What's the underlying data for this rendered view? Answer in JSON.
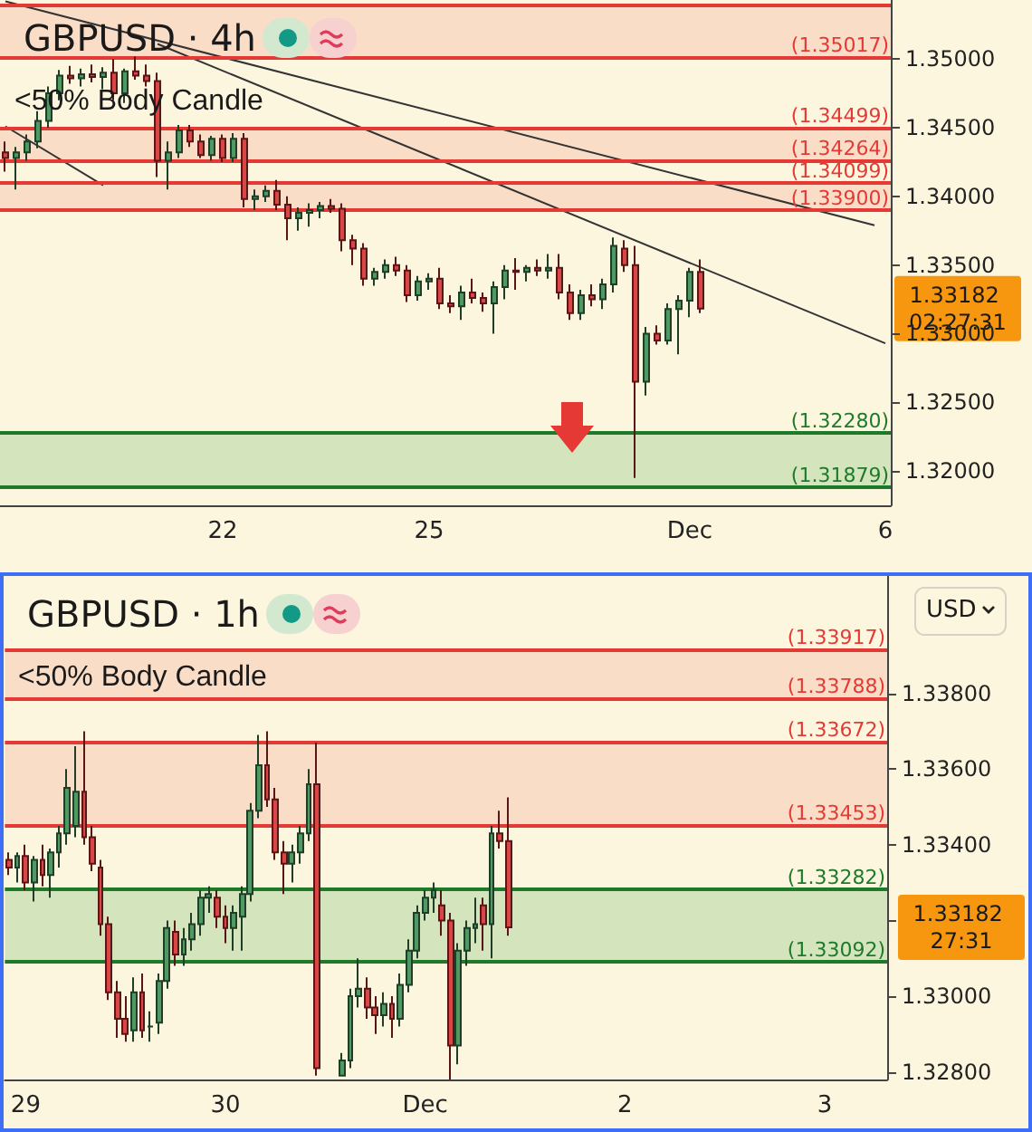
{
  "chart_data": [
    {
      "type": "candlestick",
      "title": "GBPUSD · 4h",
      "marker": "none",
      "grid": false,
      "categories": [
        null,
        null,
        null,
        null,
        null,
        null,
        null,
        null,
        null,
        null,
        null,
        null,
        null,
        null,
        null,
        null,
        null,
        null,
        null,
        null,
        "22",
        null,
        null,
        null,
        null,
        null,
        null,
        null,
        null,
        null,
        null,
        null,
        null,
        null,
        null,
        null,
        null,
        null,
        null,
        "25",
        null,
        null,
        null,
        null,
        null,
        null,
        null,
        null,
        null,
        null,
        null,
        null,
        null,
        null,
        null,
        null,
        null,
        null,
        null,
        null,
        null,
        null,
        null,
        "Dec",
        null,
        null,
        null,
        null,
        null,
        null,
        null,
        null,
        null,
        null,
        null,
        null,
        null,
        null,
        null,
        null,
        null,
        "6"
      ],
      "ohlc": [
        [
          1.3432,
          1.344,
          1.3418,
          1.3428
        ],
        [
          1.3428,
          1.3436,
          1.3405,
          1.3432
        ],
        [
          1.3432,
          1.3445,
          1.3426,
          1.344
        ],
        [
          1.344,
          1.3462,
          1.3435,
          1.3455
        ],
        [
          1.3455,
          1.348,
          1.345,
          1.3475
        ],
        [
          1.3475,
          1.3492,
          1.347,
          1.3488
        ],
        [
          1.3488,
          1.3495,
          1.3482,
          1.3486
        ],
        [
          1.3486,
          1.3493,
          1.348,
          1.3489
        ],
        [
          1.3489,
          1.3496,
          1.3483,
          1.3487
        ],
        [
          1.3487,
          1.3494,
          1.3478,
          1.349
        ],
        [
          1.349,
          1.35,
          1.347,
          1.3475
        ],
        [
          1.3475,
          1.3493,
          1.3468,
          1.3491
        ],
        [
          1.3491,
          1.3502,
          1.3485,
          1.3488
        ],
        [
          1.3488,
          1.3496,
          1.348,
          1.3484
        ],
        [
          1.3484,
          1.349,
          1.3414,
          1.3426
        ],
        [
          1.3426,
          1.344,
          1.3405,
          1.3432
        ],
        [
          1.3432,
          1.3452,
          1.3428,
          1.3448
        ],
        [
          1.3448,
          1.3452,
          1.3436,
          1.344
        ],
        [
          1.344,
          1.3445,
          1.3428,
          1.343
        ],
        [
          1.343,
          1.3444,
          1.3426,
          1.3442
        ],
        [
          1.3442,
          1.3445,
          1.3425,
          1.3428
        ],
        [
          1.3428,
          1.3446,
          1.3425,
          1.3442
        ],
        [
          1.3442,
          1.3446,
          1.3392,
          1.3398
        ],
        [
          1.3398,
          1.3405,
          1.339,
          1.34
        ],
        [
          1.34,
          1.3408,
          1.3396,
          1.3404
        ],
        [
          1.3404,
          1.3412,
          1.339,
          1.3394
        ],
        [
          1.3394,
          1.34,
          1.3368,
          1.3384
        ],
        [
          1.3384,
          1.3392,
          1.3375,
          1.3388
        ],
        [
          1.3388,
          1.3395,
          1.3378,
          1.339
        ],
        [
          1.339,
          1.3396,
          1.3384,
          1.3393
        ],
        [
          1.3393,
          1.3398,
          1.3388,
          1.3391
        ],
        [
          1.3391,
          1.3395,
          1.336,
          1.3368
        ],
        [
          1.3368,
          1.3372,
          1.335,
          1.3362
        ],
        [
          1.3362,
          1.3366,
          1.3335,
          1.334
        ],
        [
          1.334,
          1.3348,
          1.3335,
          1.3345
        ],
        [
          1.3345,
          1.3354,
          1.334,
          1.335
        ],
        [
          1.335,
          1.3356,
          1.3342,
          1.3346
        ],
        [
          1.3346,
          1.335,
          1.3323,
          1.3328
        ],
        [
          1.3328,
          1.3342,
          1.3324,
          1.3338
        ],
        [
          1.3338,
          1.3344,
          1.3332,
          1.334
        ],
        [
          1.334,
          1.3348,
          1.3318,
          1.3322
        ],
        [
          1.3322,
          1.3328,
          1.3315,
          1.332
        ],
        [
          1.332,
          1.3335,
          1.331,
          1.333
        ],
        [
          1.333,
          1.334,
          1.3322,
          1.3326
        ],
        [
          1.3326,
          1.333,
          1.3316,
          1.3322
        ],
        [
          1.3322,
          1.3338,
          1.33,
          1.3334
        ],
        [
          1.3334,
          1.335,
          1.3325,
          1.3346
        ],
        [
          1.3346,
          1.3355,
          1.3332,
          1.3345
        ],
        [
          1.3345,
          1.335,
          1.3338,
          1.3348
        ],
        [
          1.3348,
          1.3354,
          1.3342,
          1.3346
        ],
        [
          1.3346,
          1.3358,
          1.334,
          1.3348
        ],
        [
          1.3348,
          1.3358,
          1.3325,
          1.333
        ],
        [
          1.333,
          1.3336,
          1.331,
          1.3315
        ],
        [
          1.3315,
          1.3332,
          1.331,
          1.3328
        ],
        [
          1.3328,
          1.3336,
          1.332,
          1.3325
        ],
        [
          1.3325,
          1.334,
          1.3318,
          1.3336
        ],
        [
          1.3336,
          1.337,
          1.333,
          1.3364
        ],
        [
          1.3362,
          1.3368,
          1.3345,
          1.335
        ],
        [
          1.335,
          1.3364,
          1.3195,
          1.3265
        ],
        [
          1.3265,
          1.3305,
          1.3255,
          1.33
        ],
        [
          1.33,
          1.3306,
          1.3292,
          1.3295
        ],
        [
          1.3295,
          1.3322,
          1.3292,
          1.3318
        ],
        [
          1.3318,
          1.3328,
          1.3285,
          1.3324
        ],
        [
          1.3324,
          1.3348,
          1.3312,
          1.3345
        ],
        [
          1.3345,
          1.3354,
          1.3315,
          1.33182
        ],
        null,
        null,
        null,
        null,
        null,
        null,
        null,
        null,
        null,
        null,
        null,
        null,
        null,
        null,
        null,
        null,
        null
      ],
      "series": [
        {
          "type": "line",
          "color": "#333333",
          "values": [
            1.3542,
            null,
            null,
            null,
            null,
            null,
            null,
            null,
            null,
            null,
            null,
            null,
            null,
            null,
            null,
            null,
            null,
            null,
            null,
            null,
            null,
            null,
            null,
            null,
            null,
            null,
            null,
            null,
            null,
            null,
            null,
            null,
            null,
            null,
            null,
            null,
            null,
            null,
            null,
            null,
            null,
            null,
            null,
            null,
            null,
            null,
            null,
            null,
            null,
            null,
            null,
            null,
            null,
            null,
            null,
            null,
            null,
            null,
            null,
            null,
            null,
            null,
            null,
            null,
            null,
            null,
            null,
            null,
            null,
            null,
            null,
            null,
            null,
            null,
            null,
            null,
            null,
            null,
            null,
            null,
            1.3379,
            null
          ]
        },
        {
          "type": "line",
          "color": "#333333",
          "values": [
            null,
            null,
            null,
            null,
            null,
            null,
            null,
            null,
            null,
            null,
            null,
            null,
            null,
            null,
            1.3511,
            null,
            null,
            null,
            null,
            null,
            null,
            null,
            null,
            null,
            null,
            null,
            null,
            null,
            null,
            null,
            null,
            null,
            null,
            null,
            null,
            null,
            null,
            null,
            null,
            null,
            null,
            null,
            null,
            null,
            null,
            null,
            null,
            null,
            null,
            null,
            null,
            null,
            null,
            null,
            null,
            null,
            null,
            null,
            null,
            null,
            null,
            null,
            null,
            null,
            null,
            null,
            null,
            null,
            null,
            null,
            null,
            null,
            null,
            null,
            null,
            null,
            null,
            null,
            null,
            null,
            null,
            1.3293
          ]
        },
        {
          "type": "line",
          "color": "#333333",
          "values": [
            1.3451,
            null,
            null,
            null,
            null,
            null,
            null,
            null,
            null,
            1.3408,
            null,
            null,
            null,
            null,
            null,
            null,
            null,
            null,
            null,
            null,
            null,
            null,
            null,
            null,
            null,
            null,
            null,
            null,
            null,
            null,
            null,
            null,
            null,
            null,
            null,
            null,
            null,
            null,
            null,
            null,
            null,
            null,
            null,
            null,
            null,
            null,
            null,
            null,
            null,
            null,
            null,
            null,
            null,
            null,
            null,
            null,
            null,
            null,
            null,
            null,
            null,
            null,
            null,
            null,
            null,
            null,
            null,
            null,
            null,
            null,
            null,
            null,
            null,
            null,
            null,
            null,
            null,
            null,
            null,
            null,
            null,
            null
          ]
        }
      ],
      "ylim": [
        1.3175,
        1.3543
      ],
      "yticks": [
        {
          "value": 1.32,
          "label": "1.32000"
        },
        {
          "value": 1.325,
          "label": "1.32500"
        },
        {
          "value": 1.33,
          "label": "1.33000"
        },
        {
          "value": 1.335,
          "label": "1.33500"
        },
        {
          "value": 1.34,
          "label": "1.34000"
        },
        {
          "value": 1.345,
          "label": "1.34500"
        },
        {
          "value": 1.35,
          "label": "1.35000"
        }
      ],
      "ref_lines": [
        {
          "axis": "y",
          "value": 1.3539,
          "label": null,
          "color": "#e53935"
        },
        {
          "axis": "y",
          "value": 1.35017,
          "label": "(1.35017)",
          "color": "#e53935"
        },
        {
          "axis": "y",
          "value": 1.34499,
          "label": "(1.34499)",
          "color": "#e53935"
        },
        {
          "axis": "y",
          "value": 1.34264,
          "label": "(1.34264)",
          "color": "#e53935"
        },
        {
          "axis": "y",
          "value": 1.34099,
          "label": "(1.34099)",
          "color": "#e53935"
        },
        {
          "axis": "y",
          "value": 1.339,
          "label": "(1.33900)",
          "color": "#e53935"
        },
        {
          "axis": "y",
          "value": 1.3228,
          "label": "(1.32280)",
          "color": "#1e7a2a"
        },
        {
          "axis": "y",
          "value": 1.31879,
          "label": "(1.31879)",
          "color": "#1e7a2a"
        }
      ],
      "bands": [
        {
          "axis": "y",
          "from": 1.35017,
          "to": 1.3539,
          "color": "#f7cdb8"
        },
        {
          "axis": "y",
          "from": 1.34264,
          "to": 1.34499,
          "color": "#f7cdb8"
        },
        {
          "axis": "y",
          "from": 1.339,
          "to": 1.34099,
          "color": "#f7cdb8"
        },
        {
          "axis": "y",
          "from": 1.31879,
          "to": 1.3228,
          "color": "#b9d9a6"
        }
      ],
      "annotations": [
        "<50% Body Candle",
        "1.33182 02:27:31"
      ]
    },
    {
      "type": "candlestick",
      "title": "GBPUSD · 1h",
      "grid": false,
      "categories": [
        null,
        null,
        "29",
        null,
        null,
        null,
        null,
        null,
        null,
        null,
        null,
        null,
        null,
        null,
        null,
        null,
        null,
        null,
        null,
        null,
        null,
        null,
        null,
        null,
        null,
        null,
        "30",
        null,
        null,
        null,
        null,
        null,
        null,
        null,
        null,
        null,
        null,
        null,
        null,
        null,
        null,
        null,
        null,
        null,
        null,
        null,
        null,
        null,
        null,
        null,
        "Dec",
        null,
        null,
        null,
        null,
        null,
        null,
        null,
        null,
        null,
        null,
        null,
        null,
        null,
        null,
        null,
        null,
        null,
        null,
        null,
        null,
        null,
        null,
        null,
        "2",
        null,
        null,
        null,
        null,
        null,
        null,
        null,
        null,
        null,
        null,
        null,
        null,
        null,
        null,
        null,
        null,
        null,
        null,
        null,
        null,
        null,
        null,
        null,
        "3",
        null,
        null,
        null,
        null,
        null,
        null,
        null
      ],
      "ohlc": [
        [
          1.3336,
          1.3338,
          1.3332,
          1.3334
        ],
        [
          1.3334,
          1.3338,
          1.333,
          1.3337
        ],
        [
          1.3337,
          1.334,
          1.3328,
          1.333
        ],
        [
          1.333,
          1.3337,
          1.3325,
          1.3336
        ],
        [
          1.3336,
          1.334,
          1.3329,
          1.3332
        ],
        [
          1.3332,
          1.3339,
          1.3326,
          1.3338
        ],
        [
          1.3338,
          1.3345,
          1.3334,
          1.3343
        ],
        [
          1.3343,
          1.336,
          1.334,
          1.3355
        ],
        [
          1.3345,
          1.3366,
          1.3342,
          1.3354
        ],
        [
          1.3354,
          1.337,
          1.334,
          1.3342
        ],
        [
          1.3342,
          1.3345,
          1.3333,
          1.3335
        ],
        [
          1.3334,
          1.3336,
          1.3316,
          1.3319
        ],
        [
          1.3319,
          1.3321,
          1.3299,
          1.3301
        ],
        [
          1.3301,
          1.3304,
          1.3289,
          1.3294
        ],
        [
          1.3294,
          1.33,
          1.3288,
          1.329
        ],
        [
          1.3291,
          1.3305,
          1.3288,
          1.3301
        ],
        [
          1.3301,
          1.3306,
          1.3289,
          1.3291
        ],
        [
          1.3292,
          1.3296,
          1.3288,
          1.3292
        ],
        [
          1.3293,
          1.3306,
          1.329,
          1.3304
        ],
        [
          1.3304,
          1.332,
          1.3302,
          1.3318
        ],
        [
          1.3317,
          1.332,
          1.3308,
          1.3311
        ],
        [
          1.3311,
          1.3318,
          1.3308,
          1.3315
        ],
        [
          1.3315,
          1.3322,
          1.3312,
          1.3319
        ],
        [
          1.3319,
          1.3328,
          1.3316,
          1.3326
        ],
        [
          1.3326,
          1.3329,
          1.3322,
          1.3327
        ],
        [
          1.3326,
          1.3328,
          1.3318,
          1.3321
        ],
        [
          1.3321,
          1.3324,
          1.3314,
          1.3318
        ],
        [
          1.3318,
          1.3324,
          1.3312,
          1.3322
        ],
        [
          1.3321,
          1.3329,
          1.3312,
          1.3327
        ],
        [
          1.3327,
          1.3351,
          1.3325,
          1.3349
        ],
        [
          1.3349,
          1.3369,
          1.3347,
          1.3361
        ],
        [
          1.3361,
          1.337,
          1.335,
          1.3352
        ],
        [
          1.3352,
          1.3355,
          1.3336,
          1.3338
        ],
        [
          1.3338,
          1.3341,
          1.3327,
          1.3335
        ],
        [
          1.3335,
          1.334,
          1.333,
          1.3338
        ],
        [
          1.3338,
          1.3345,
          1.3335,
          1.3343
        ],
        [
          1.3343,
          1.336,
          1.3341,
          1.3356
        ],
        [
          1.3356,
          1.3367,
          1.3279,
          1.3281
        ],
        null,
        null,
        [
          1.3279,
          1.3285,
          1.3279,
          1.3283
        ],
        [
          1.3283,
          1.3302,
          1.3281,
          1.33
        ],
        [
          1.33,
          1.331,
          1.3297,
          1.3302
        ],
        [
          1.3302,
          1.3305,
          1.3294,
          1.3297
        ],
        [
          1.3297,
          1.33,
          1.329,
          1.3295
        ],
        [
          1.3295,
          1.3301,
          1.3292,
          1.3298
        ],
        [
          1.3298,
          1.33,
          1.3289,
          1.3294
        ],
        [
          1.3294,
          1.3306,
          1.3292,
          1.3303
        ],
        [
          1.3303,
          1.3315,
          1.3301,
          1.3312
        ],
        [
          1.3312,
          1.3324,
          1.331,
          1.3322
        ],
        [
          1.3322,
          1.3328,
          1.332,
          1.3326
        ],
        [
          1.3326,
          1.333,
          1.3322,
          1.3328
        ],
        [
          1.3324,
          1.3328,
          1.3316,
          1.332
        ],
        [
          1.332,
          1.3322,
          1.3278,
          1.3287
        ],
        [
          1.3287,
          1.3314,
          1.3282,
          1.3312
        ],
        [
          1.3312,
          1.332,
          1.3308,
          1.3318
        ],
        [
          1.3318,
          1.3326,
          1.3314,
          1.3319
        ],
        [
          1.3324,
          1.3326,
          1.3312,
          1.3319
        ],
        [
          1.3319,
          1.3345,
          1.331,
          1.3343
        ],
        [
          1.3343,
          1.3349,
          1.3339,
          1.3341
        ],
        [
          1.3341,
          1.33525,
          1.3316,
          1.33182
        ],
        null,
        null,
        null,
        null,
        null,
        null,
        null,
        null,
        null,
        null,
        null,
        null,
        null,
        null,
        null,
        null,
        null,
        null,
        null,
        null,
        null,
        null,
        null,
        null,
        null,
        null,
        null,
        null,
        null,
        null,
        null,
        null,
        null,
        null,
        null,
        null,
        null,
        null,
        null,
        null,
        null,
        null,
        null,
        null,
        null
      ],
      "ylim": [
        1.3278,
        1.3411
      ],
      "yticks": [
        {
          "value": 1.328,
          "label": "1.32800"
        },
        {
          "value": 1.33,
          "label": "1.33000"
        },
        {
          "value": 1.332,
          "label": null
        },
        {
          "value": 1.334,
          "label": "1.33400"
        },
        {
          "value": 1.336,
          "label": "1.33600"
        },
        {
          "value": 1.338,
          "label": "1.33800"
        }
      ],
      "ref_lines": [
        {
          "axis": "y",
          "value": 1.33917,
          "label": "(1.33917)",
          "color": "#e53935"
        },
        {
          "axis": "y",
          "value": 1.33788,
          "label": "(1.33788)",
          "color": "#e53935"
        },
        {
          "axis": "y",
          "value": 1.33672,
          "label": "(1.33672)",
          "color": "#e53935"
        },
        {
          "axis": "y",
          "value": 1.33453,
          "label": "(1.33453)",
          "color": "#e53935"
        },
        {
          "axis": "y",
          "value": 1.33282,
          "label": "(1.33282)",
          "color": "#1e7a2a"
        },
        {
          "axis": "y",
          "value": 1.33092,
          "label": "(1.33092)",
          "color": "#1e7a2a"
        }
      ],
      "bands": [
        {
          "axis": "y",
          "from": 1.33788,
          "to": 1.33917,
          "color": "#f7cdb8"
        },
        {
          "axis": "y",
          "from": 1.33453,
          "to": 1.33672,
          "color": "#f7cdb8"
        },
        {
          "axis": "y",
          "from": 1.33092,
          "to": 1.33282,
          "color": "#b9d9a6"
        }
      ],
      "annotations": [
        "<50% Body Candle",
        "USD",
        "1.33182 27:31"
      ]
    }
  ]
}
